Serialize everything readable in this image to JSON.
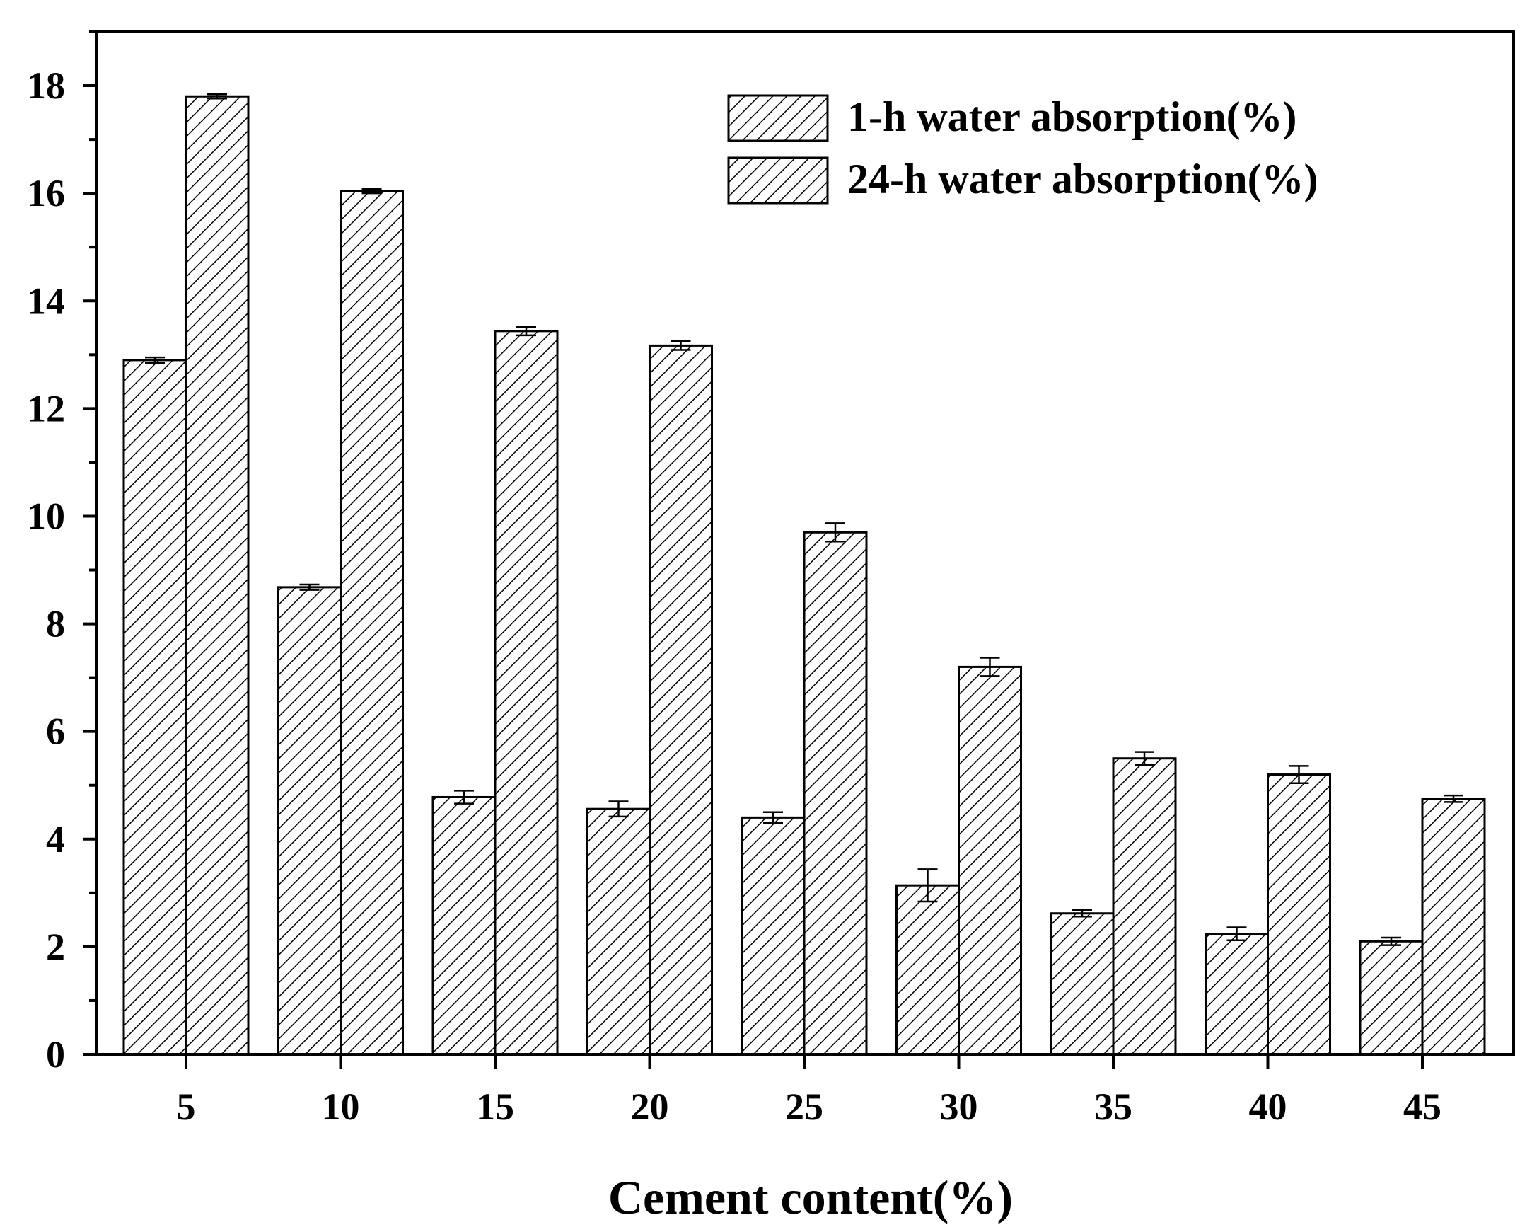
{
  "chart_data": {
    "type": "bar",
    "title": "",
    "xlabel": "Cement content(%)",
    "ylabel": "",
    "categories": [
      "5",
      "10",
      "15",
      "20",
      "25",
      "30",
      "35",
      "40",
      "45"
    ],
    "series": [
      {
        "name": "1-h water absorption(%)",
        "values": [
          12.9,
          8.68,
          4.78,
          4.56,
          4.4,
          3.14,
          2.62,
          2.24,
          2.1
        ],
        "errors": [
          0.05,
          0.05,
          0.12,
          0.14,
          0.1,
          0.3,
          0.06,
          0.12,
          0.07
        ]
      },
      {
        "name": "24-h water absorption(%)",
        "values": [
          17.8,
          16.04,
          13.44,
          13.17,
          9.7,
          7.2,
          5.5,
          5.2,
          4.75
        ],
        "errors": [
          0.04,
          0.04,
          0.08,
          0.08,
          0.17,
          0.17,
          0.12,
          0.16,
          0.06
        ]
      }
    ],
    "ylim": [
      0,
      19
    ],
    "yticks": [
      0,
      2,
      4,
      6,
      8,
      10,
      12,
      14,
      16,
      18
    ],
    "grid": false,
    "legend_position": "top-right",
    "bar_pattern": "diagonal-hatch",
    "colors": {
      "bar_fill": "#ffffff",
      "hatch": "#000000",
      "axis": "#000000"
    }
  }
}
